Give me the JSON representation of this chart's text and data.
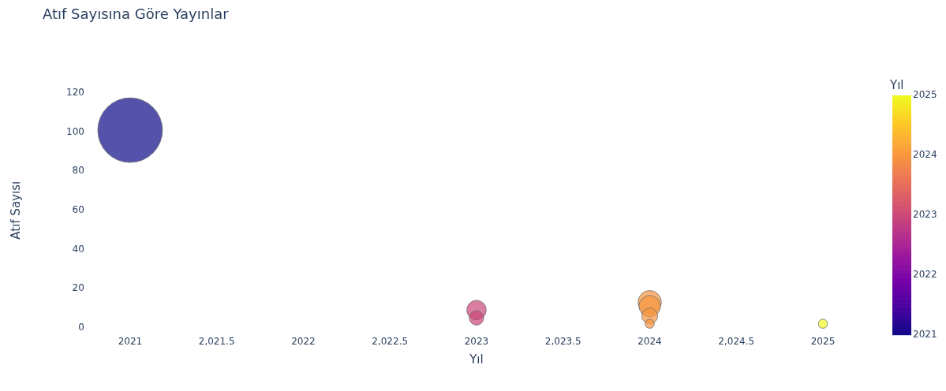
{
  "chart_data": {
    "type": "bubble",
    "title": "Atıf Sayısına Göre Yayınlar",
    "xlabel": "Yıl",
    "ylabel": "Atıf Sayısı",
    "clabel": "Yıl",
    "x": [
      2021,
      2023,
      2023,
      2024,
      2024,
      2024,
      2024,
      2025
    ],
    "values": [
      101,
      9,
      5,
      13,
      11,
      6,
      2,
      2
    ],
    "sizes": [
      1,
      0.09,
      0.05,
      0.13,
      0.11,
      0.06,
      0.02,
      0.02
    ],
    "cvalues": [
      2021,
      2023,
      2023,
      2024,
      2024,
      2024,
      2024,
      2025
    ],
    "clim": [
      2021,
      2025
    ],
    "cticks": [
      2021,
      2022,
      2023,
      2024,
      2025
    ],
    "xticks": [
      2021,
      {
        "value": 2021.5,
        "label": "2,021.5"
      },
      2022,
      {
        "value": 2022.5,
        "label": "2,022.5"
      },
      2023,
      {
        "value": 2023.5,
        "label": "2,023.5"
      },
      2024,
      {
        "value": 2024.5,
        "label": "2,024.5"
      },
      2025
    ],
    "xlim": [
      2021,
      2025
    ],
    "ylim": [
      0,
      120
    ],
    "yticks": [
      0,
      20,
      40,
      60,
      80,
      100,
      120
    ]
  }
}
